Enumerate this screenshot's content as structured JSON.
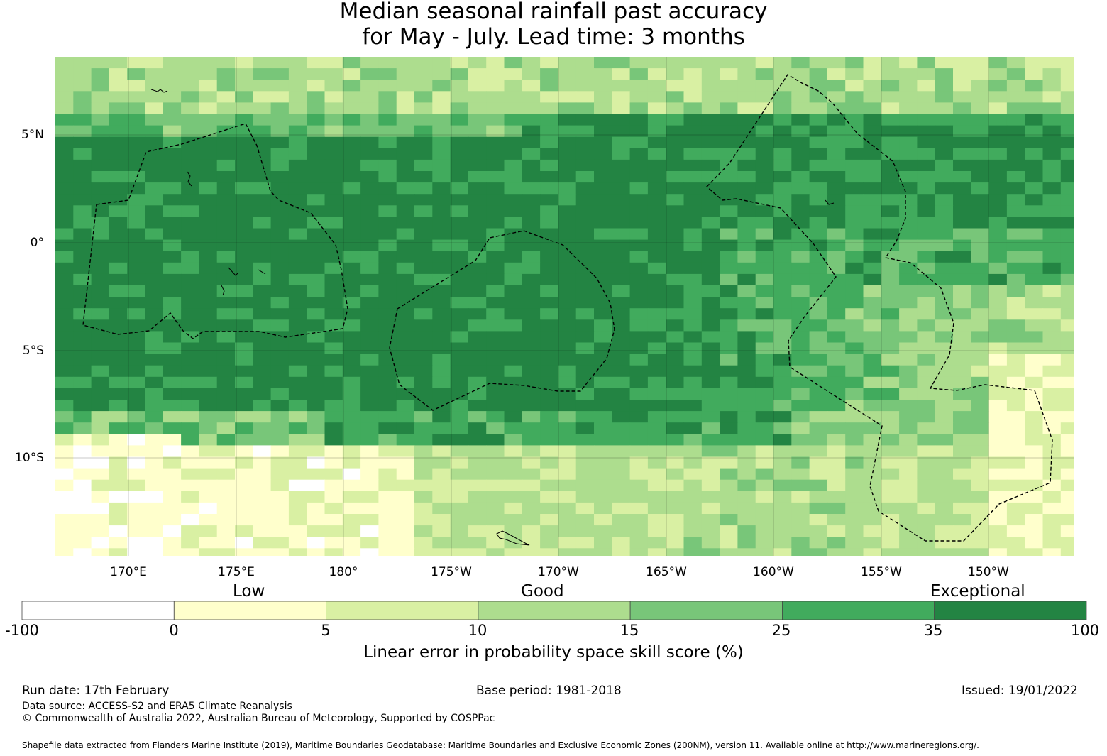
{
  "title": {
    "line1": "Median seasonal rainfall past accuracy",
    "line2": "for May - July. Lead time: 3 months"
  },
  "map": {
    "lat_labels": [
      "5°N",
      "0°",
      "5°S",
      "10°S"
    ],
    "lon_labels": [
      "170°E",
      "175°E",
      "180°",
      "175°W",
      "170°W",
      "165°W",
      "160°W",
      "155°W",
      "150°W"
    ],
    "palette": [
      "#ffffff",
      "#ffffcc",
      "#d9f0a3",
      "#addd8e",
      "#78c679",
      "#41ab5d",
      "#238443"
    ]
  },
  "legend": {
    "categories": [
      "Low",
      "Good",
      "Exceptional"
    ],
    "ticks": [
      "-100",
      "0",
      "5",
      "10",
      "15",
      "25",
      "35",
      "100"
    ],
    "label": "Linear error in probability space skill score (%)"
  },
  "footer": {
    "run_date": "Run date: 17th February",
    "base_period": "Base period: 1981-2018",
    "issued": "Issued: 19/01/2022",
    "data_source": "Data source: ACCESS-S2 and ERA5 Climate Reanalysis",
    "copyright": "© Commonwealth of Australia 2022, Australian Bureau of Meteorology, Supported by COSPPac",
    "shapefile": "Shapefile data extracted from Flanders Marine Institute (2019), Maritime Boundaries Geodatabase: Maritime Boundaries and Exclusive Economic Zones (200NM), version 11. Available online at http://www.marineregions.org/."
  }
}
